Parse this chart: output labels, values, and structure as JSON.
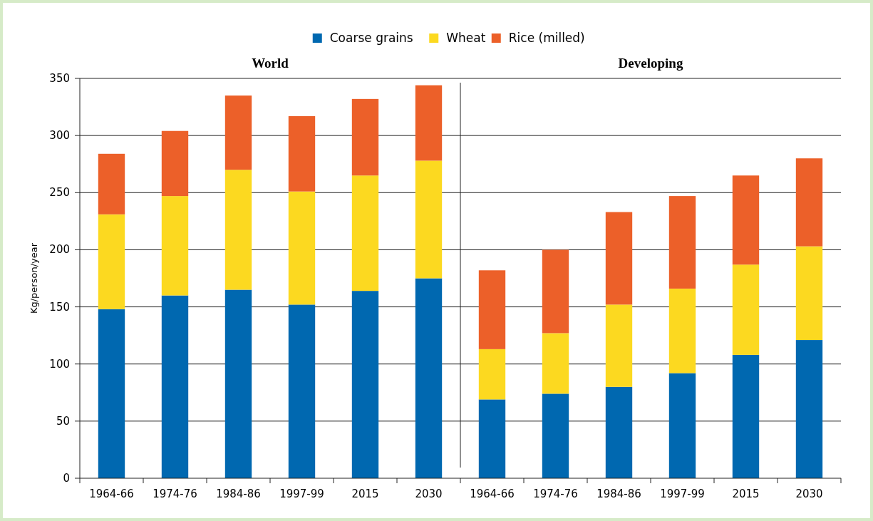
{
  "chart_data": [
    {
      "type": "bar",
      "title": "World",
      "ylabel": "Kg/person/year",
      "stacked": true,
      "categories": [
        "1964-66",
        "1974-76",
        "1984-86",
        "1997-99",
        "2015",
        "2030"
      ],
      "ylim": [
        0,
        350
      ],
      "yticks": [
        0,
        50,
        100,
        150,
        200,
        250,
        300,
        350
      ],
      "grid": "y",
      "legend": "top",
      "series": [
        {
          "name": "Coarse grains",
          "color": "#0068b0",
          "values": [
            148,
            160,
            165,
            152,
            164,
            175
          ]
        },
        {
          "name": "Wheat",
          "color": "#fcd920",
          "values": [
            83,
            87,
            105,
            99,
            101,
            103
          ]
        },
        {
          "name": "Rice (milled)",
          "color": "#ec6029",
          "values": [
            53,
            57,
            65,
            66,
            67,
            66
          ]
        }
      ]
    },
    {
      "type": "bar",
      "title": "Developing",
      "stacked": true,
      "categories": [
        "1964-66",
        "1974-76",
        "1984-86",
        "1997-99",
        "2015",
        "2030"
      ],
      "ylim": [
        0,
        350
      ],
      "yticks": [
        0,
        50,
        100,
        150,
        200,
        250,
        300,
        350
      ],
      "grid": "y",
      "tick_labels": "x",
      "series": [
        {
          "color": "#0068b0",
          "values": [
            69,
            74,
            80,
            92,
            108,
            121
          ]
        },
        {
          "color": "#fcd920",
          "values": [
            44,
            53,
            72,
            74,
            79,
            82
          ]
        },
        {
          "color": "#ec6029",
          "values": [
            69,
            73,
            81,
            81,
            78,
            77
          ]
        }
      ]
    }
  ]
}
